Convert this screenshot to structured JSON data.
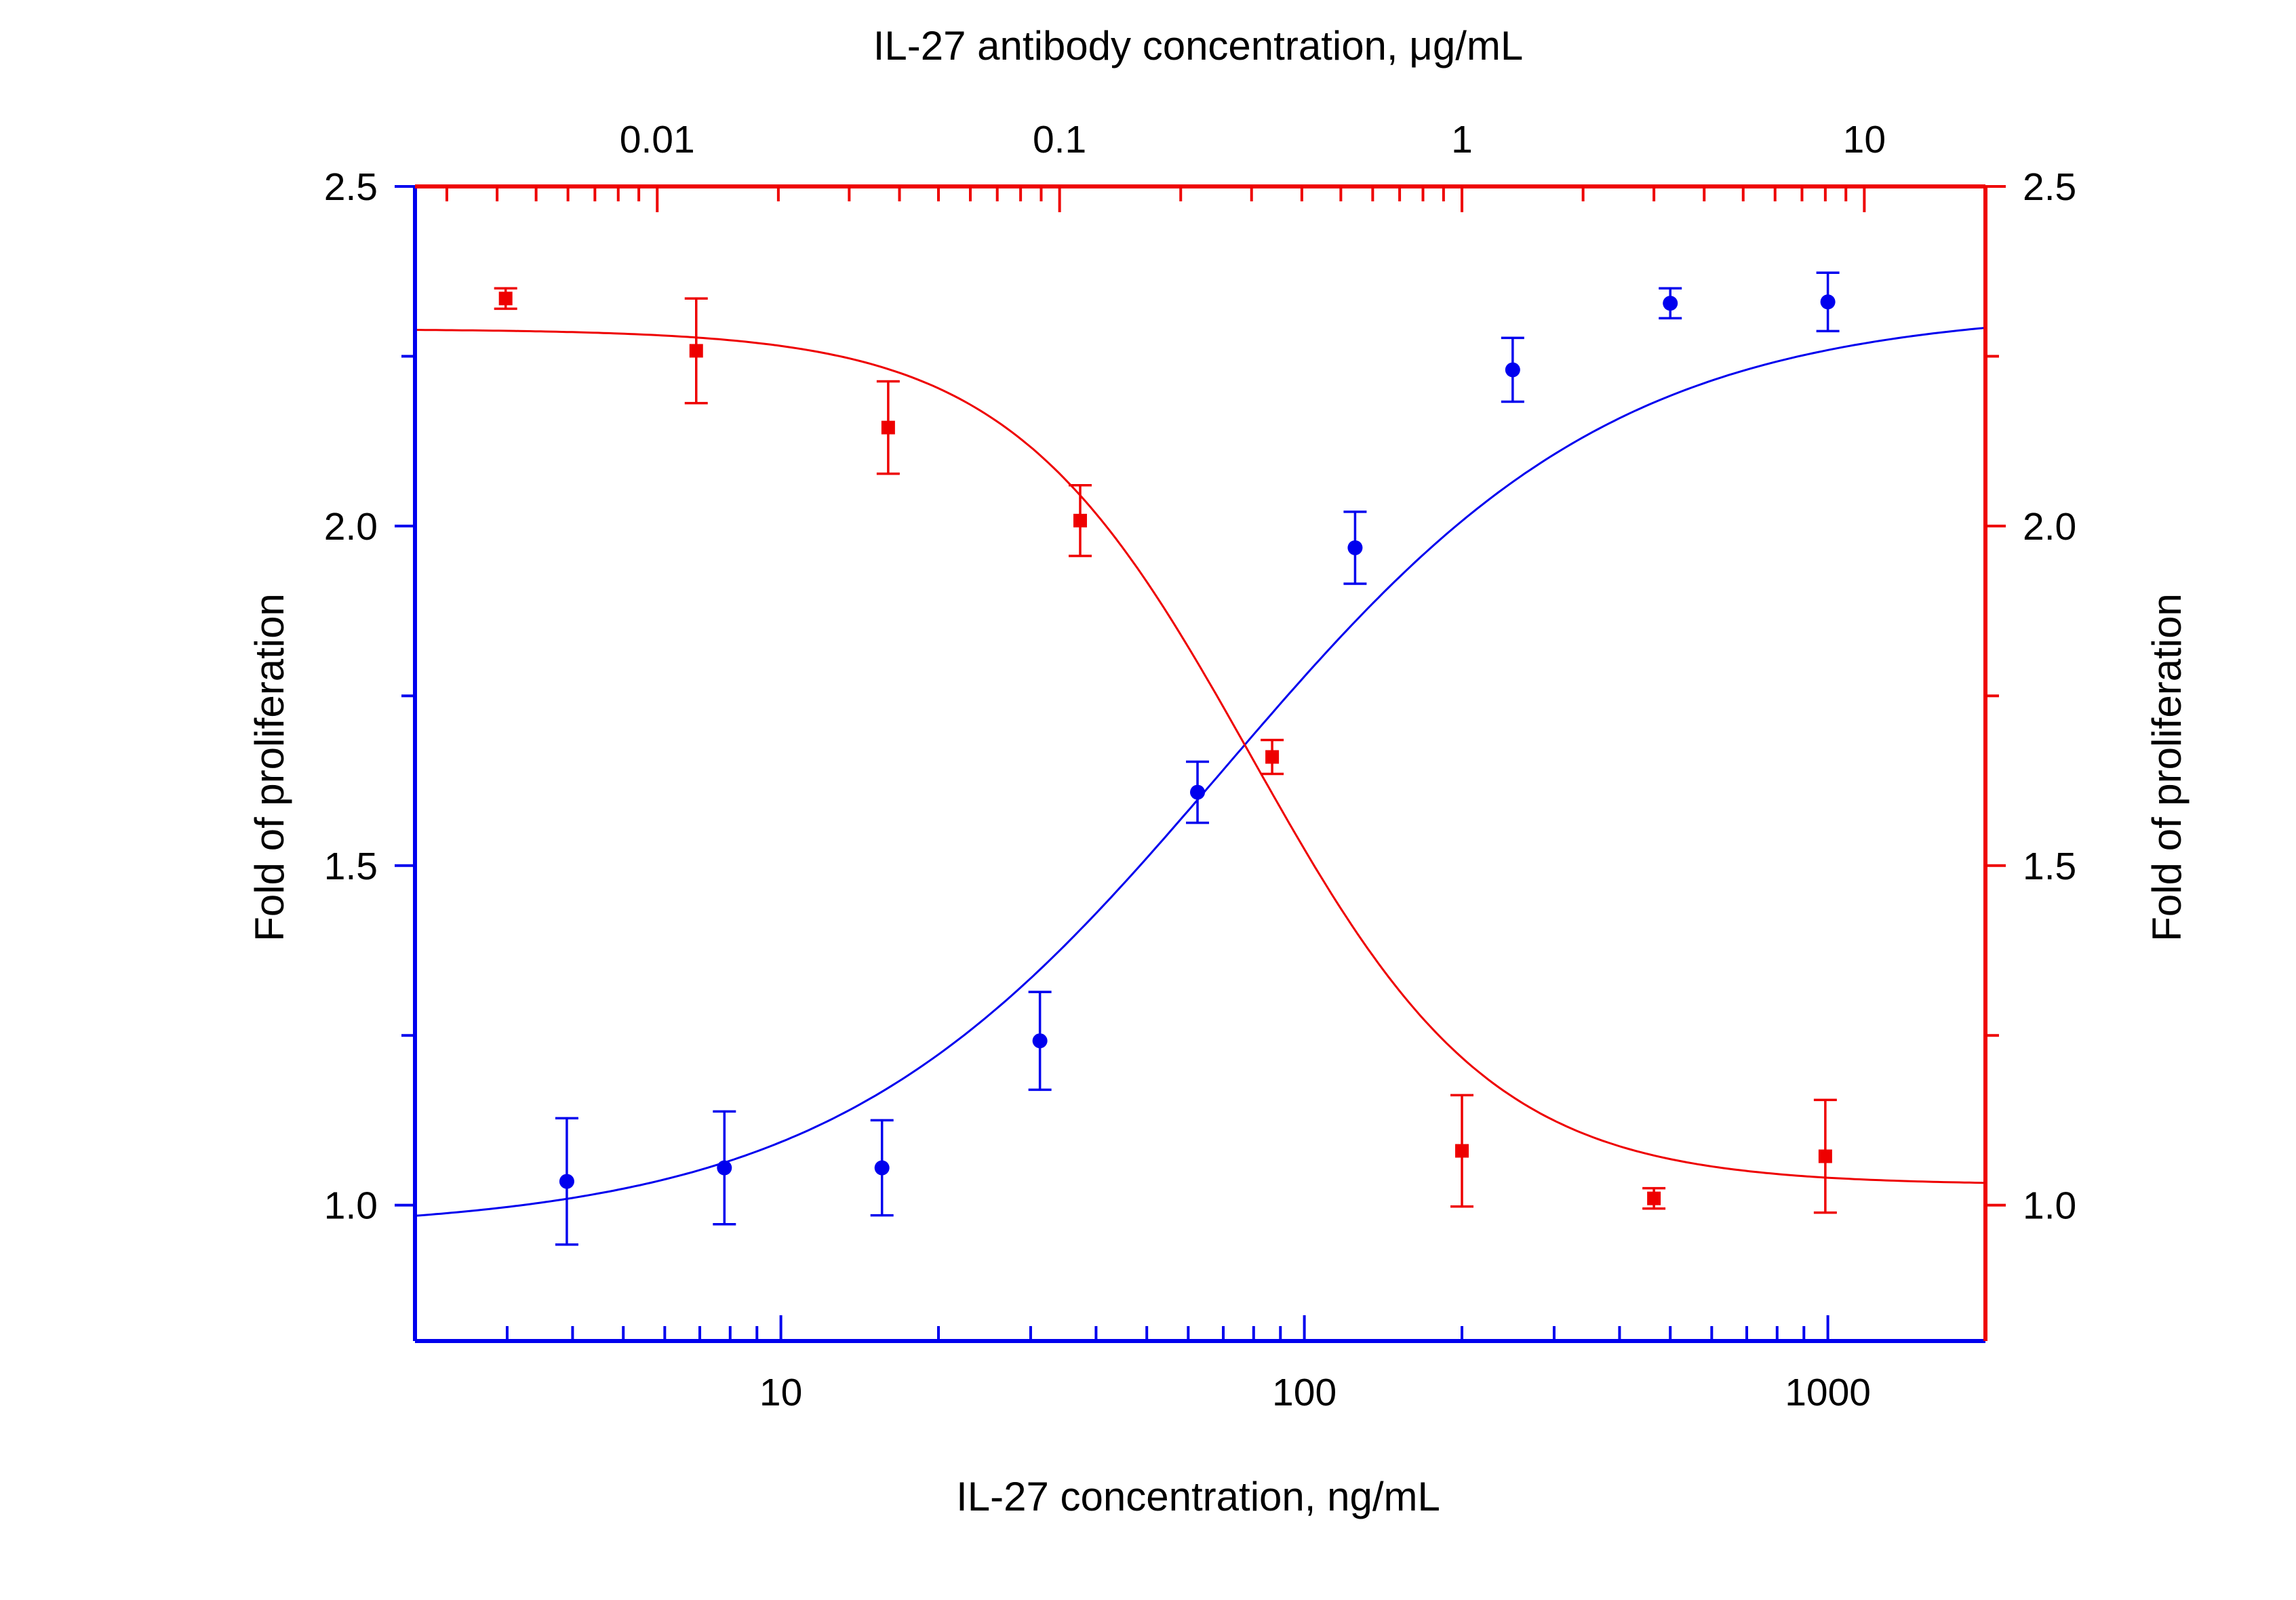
{
  "chart_data": {
    "type": "scatter",
    "title": "",
    "colors": {
      "blue": "#0000ee",
      "red": "#ee0000"
    },
    "x_axis_bottom": {
      "label": "IL-27 concentration, ng/mL",
      "scale": "log",
      "range": [
        2,
        2000
      ],
      "major_ticks": [
        10,
        100,
        1000
      ],
      "tick_labels": [
        "10",
        "100",
        "1000"
      ],
      "color": "#0000ee"
    },
    "x_axis_top": {
      "label": "IL-27 antibody concentration, μg/mL",
      "scale": "log",
      "range": [
        0.0025,
        20
      ],
      "major_ticks": [
        0.01,
        0.1,
        1,
        10
      ],
      "tick_labels": [
        "0.01",
        "0.1",
        "1",
        "10"
      ],
      "color": "#ee0000"
    },
    "y_axis_left": {
      "label": "Fold of proliferation",
      "range": [
        0.8,
        2.5
      ],
      "major_ticks": [
        1.0,
        1.5,
        2.0,
        2.5
      ],
      "tick_labels": [
        "1.0",
        "1.5",
        "2.0",
        "2.5"
      ],
      "color": "#0000ee"
    },
    "y_axis_right": {
      "label": "Fold of proliferation",
      "range": [
        0.8,
        2.5
      ],
      "major_ticks": [
        1.0,
        1.5,
        2.0,
        2.5
      ],
      "tick_labels": [
        "1.0",
        "1.5",
        "2.0",
        "2.5"
      ],
      "color": "#ee0000"
    },
    "series": [
      {
        "axis": "bottom",
        "color": "#0000ee",
        "marker": "circle",
        "x": [
          3.9,
          7.8,
          15.6,
          31.25,
          62.5,
          125,
          250,
          500,
          1000
        ],
        "y": [
          1.035,
          1.055,
          1.055,
          1.242,
          1.608,
          1.968,
          2.23,
          2.328,
          2.33
        ],
        "error": [
          0.093,
          0.083,
          0.07,
          0.072,
          0.045,
          0.053,
          0.047,
          0.022,
          0.043
        ],
        "fit": {
          "bottom": 0.962,
          "top": 2.32,
          "ec50": 70,
          "hill": 1.15
        }
      },
      {
        "axis": "top",
        "color": "#ee0000",
        "marker": "square",
        "x": [
          0.0042,
          0.0125,
          0.0375,
          0.1125,
          0.3375,
          1.0,
          3.0,
          8.0
        ],
        "y": [
          2.335,
          2.258,
          2.145,
          2.008,
          1.66,
          1.08,
          1.01,
          1.072
        ],
        "error": [
          0.015,
          0.077,
          0.068,
          0.052,
          0.025,
          0.082,
          0.015,
          0.083
        ],
        "fit": {
          "bottom": 1.03,
          "top": 2.29,
          "ic50": 0.3,
          "hill": 1.45
        }
      }
    ]
  }
}
